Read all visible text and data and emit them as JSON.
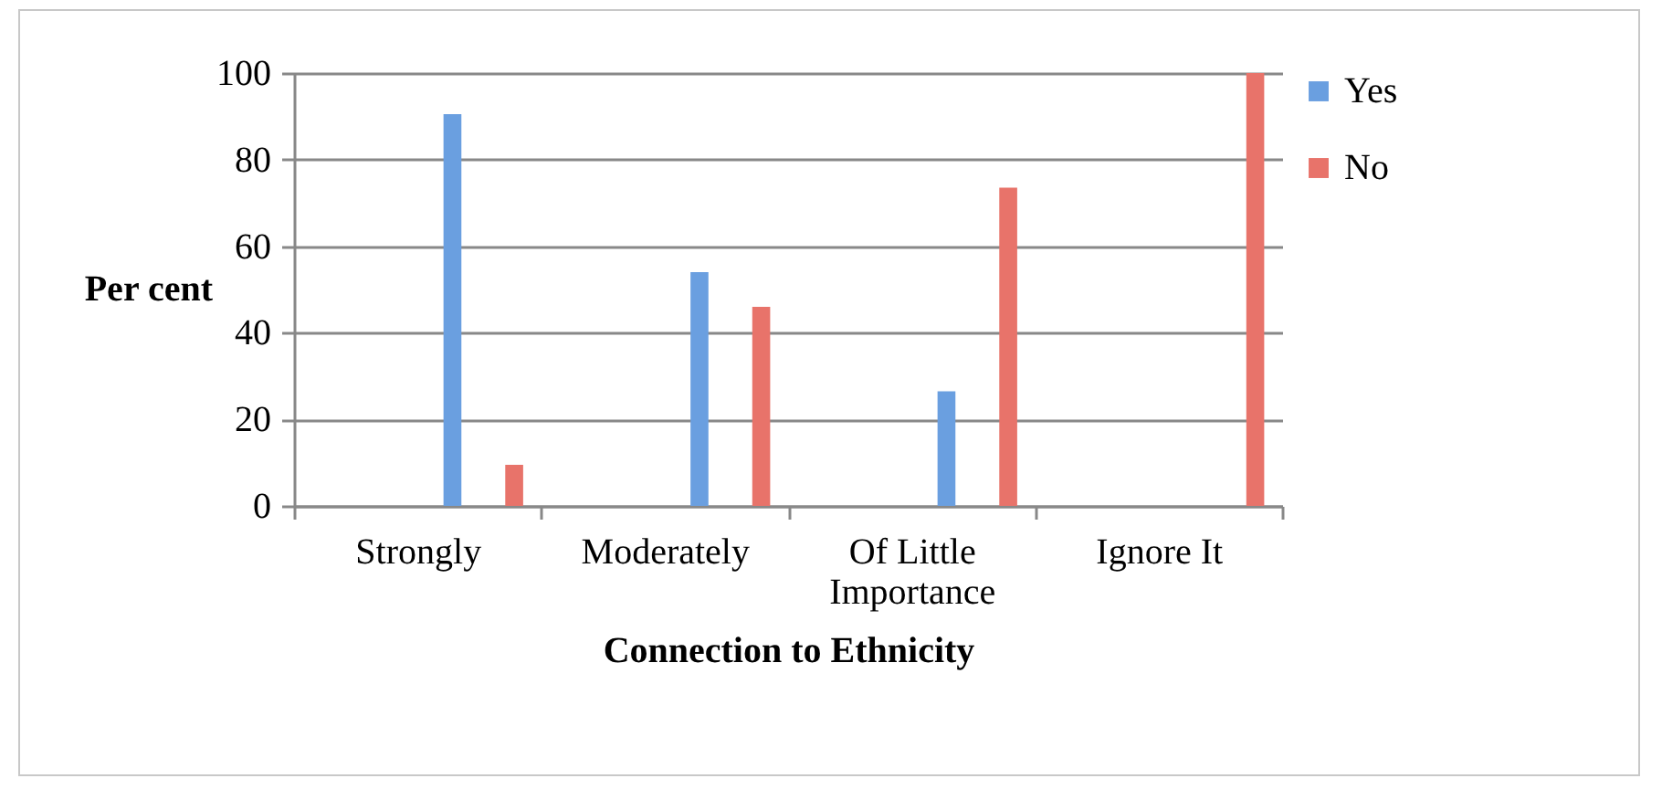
{
  "chart_data": {
    "type": "bar",
    "xlabel": "Connection to Ethnicity",
    "ylabel": "Per cent",
    "categories": [
      "Strongly",
      "Moderately",
      "Of Little Importance",
      "Ignore It"
    ],
    "series": [
      {
        "name": "Yes",
        "color": "#6a9fe0",
        "values": [
          90.5,
          54,
          26.5,
          0
        ]
      },
      {
        "name": "No",
        "color": "#e8736a",
        "values": [
          9.5,
          46,
          73.5,
          100
        ]
      }
    ],
    "ylim": [
      0,
      100
    ],
    "yticks": [
      0,
      20,
      40,
      60,
      80,
      100
    ],
    "grid": "y",
    "legend": "right"
  }
}
